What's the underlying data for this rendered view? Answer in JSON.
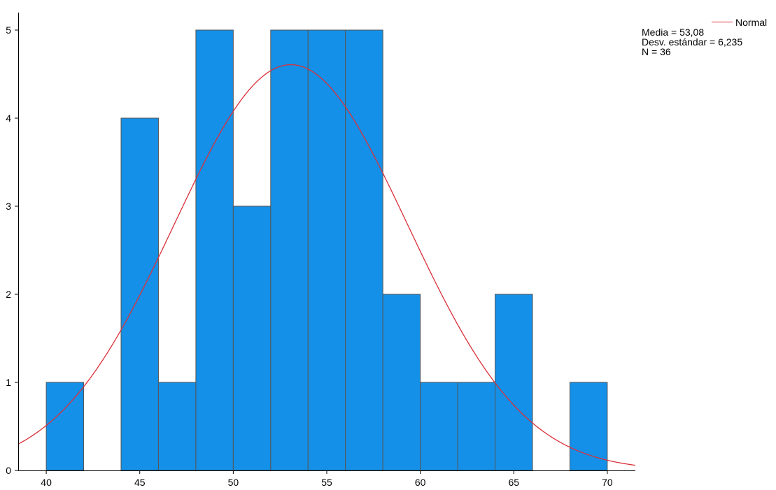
{
  "chart_data": {
    "type": "bar",
    "subtype": "histogram",
    "bins": [
      {
        "start": 40,
        "end": 42,
        "count": 1
      },
      {
        "start": 42,
        "end": 44,
        "count": 0
      },
      {
        "start": 44,
        "end": 46,
        "count": 4
      },
      {
        "start": 46,
        "end": 48,
        "count": 1
      },
      {
        "start": 48,
        "end": 50,
        "count": 5
      },
      {
        "start": 50,
        "end": 52,
        "count": 3
      },
      {
        "start": 52,
        "end": 54,
        "count": 5
      },
      {
        "start": 54,
        "end": 56,
        "count": 5
      },
      {
        "start": 56,
        "end": 58,
        "count": 5
      },
      {
        "start": 58,
        "end": 60,
        "count": 2
      },
      {
        "start": 60,
        "end": 62,
        "count": 1
      },
      {
        "start": 62,
        "end": 64,
        "count": 1
      },
      {
        "start": 64,
        "end": 66,
        "count": 2
      },
      {
        "start": 66,
        "end": 68,
        "count": 0
      },
      {
        "start": 68,
        "end": 70,
        "count": 1
      }
    ],
    "x_ticks": [
      40,
      45,
      50,
      55,
      60,
      65,
      70
    ],
    "y_ticks": [
      0,
      1,
      2,
      3,
      4,
      5
    ],
    "xlim": [
      38.5,
      71.5
    ],
    "ylim": [
      0,
      5.25
    ],
    "title": "",
    "xlabel": "",
    "ylabel": "",
    "grid": false,
    "bar_color": "#1490e8",
    "bar_edge_color": "#555555",
    "curve": {
      "name": "Normal",
      "color": "#d9303a",
      "mean": 53.08,
      "sd": 6.235,
      "n": 36,
      "bin_width": 2
    },
    "legend": {
      "position": "top-right",
      "series_label": "Normal",
      "stats": [
        "Media = 53,08",
        "Desv. estándar = 6,235",
        "N = 36"
      ]
    }
  }
}
